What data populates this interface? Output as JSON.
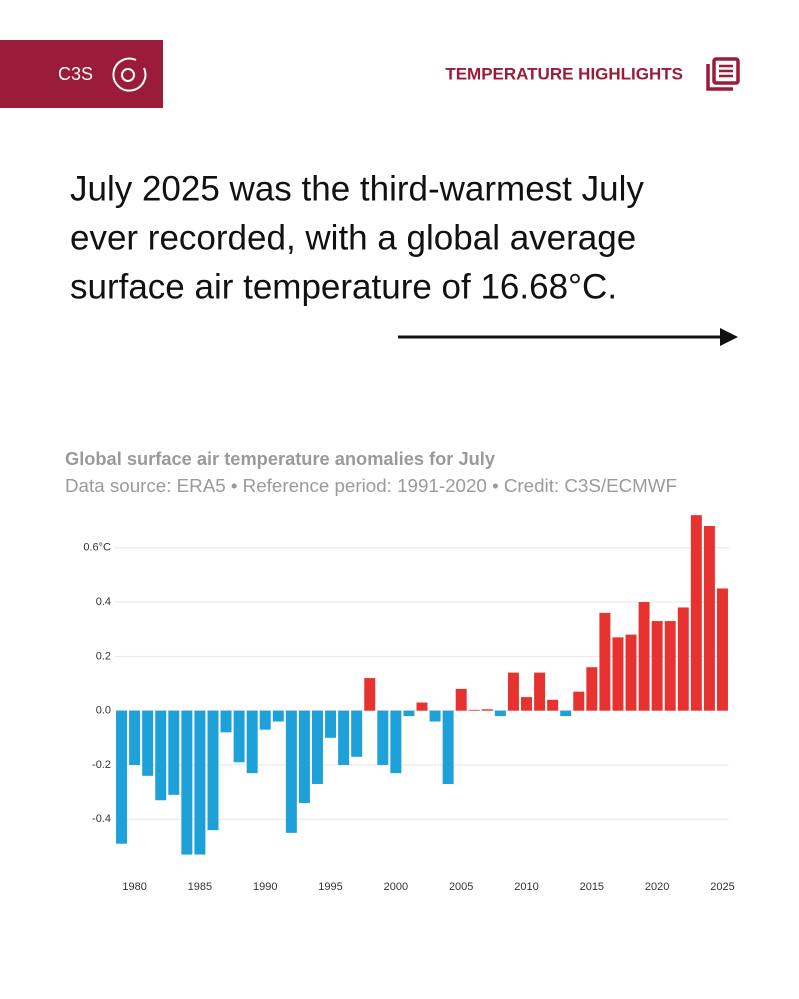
{
  "header": {
    "logo": "C3S",
    "section": "TEMPERATURE HIGHLIGHTS"
  },
  "headline": [
    "July 2025 was the third-warmest July",
    "ever recorded, with a global average",
    "surface air temperature of 16.68°C."
  ],
  "chart_data": {
    "type": "bar",
    "title": "Global surface air temperature anomalies for July",
    "subtitle": "Data source: ERA5 • Reference period: 1991-2020 • Credit: C3S/ECMWF",
    "x": [
      1979,
      1980,
      1981,
      1982,
      1983,
      1984,
      1985,
      1986,
      1987,
      1988,
      1989,
      1990,
      1991,
      1992,
      1993,
      1994,
      1995,
      1996,
      1997,
      1998,
      1999,
      2000,
      2001,
      2002,
      2003,
      2004,
      2005,
      2006,
      2007,
      2008,
      2009,
      2010,
      2011,
      2012,
      2013,
      2014,
      2015,
      2016,
      2017,
      2018,
      2019,
      2020,
      2021,
      2022,
      2023,
      2024,
      2025
    ],
    "values": [
      -0.49,
      -0.2,
      -0.24,
      -0.33,
      -0.31,
      -0.53,
      -0.53,
      -0.44,
      -0.08,
      -0.19,
      -0.23,
      -0.07,
      -0.04,
      -0.45,
      -0.34,
      -0.27,
      -0.1,
      -0.2,
      -0.17,
      0.12,
      -0.2,
      -0.23,
      -0.02,
      0.03,
      -0.04,
      -0.27,
      0.08,
      0.003,
      0.005,
      -0.02,
      0.14,
      0.05,
      0.14,
      0.04,
      -0.02,
      0.07,
      0.16,
      0.36,
      0.27,
      0.28,
      0.4,
      0.33,
      0.33,
      0.38,
      0.72,
      0.68,
      0.45
    ],
    "color_positive": "#e8322f",
    "color_negative": "#1ea0d8",
    "xlim": [
      1978.5,
      2025.5
    ],
    "xticks": [
      1980,
      1985,
      1990,
      1995,
      2000,
      2005,
      2010,
      2015,
      2020,
      2025
    ],
    "ylim": [
      -0.55,
      0.75
    ],
    "yticks": [
      {
        "value": 0.6,
        "label": "0.6°C"
      },
      0.4,
      0.2,
      {
        "value": 0,
        "label": "0.0"
      },
      -0.2,
      -0.4
    ],
    "grid": true
  }
}
